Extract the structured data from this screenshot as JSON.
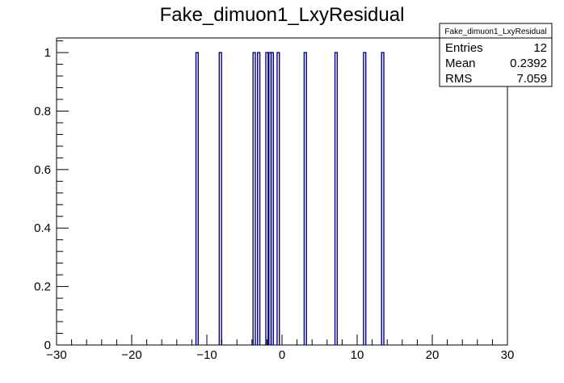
{
  "chart_data": {
    "type": "bar",
    "title": "Fake_dimuon1_LxyResidual",
    "xlabel": "",
    "ylabel": "",
    "xlim": [
      -30,
      30
    ],
    "ylim": [
      0,
      1.05
    ],
    "x_ticks": [
      -30,
      -20,
      -10,
      0,
      10,
      20,
      30
    ],
    "y_ticks": [
      0,
      0.2,
      0.4,
      0.6,
      0.8,
      1
    ],
    "grid": false,
    "bins": [
      {
        "x": -11.3,
        "value": 1
      },
      {
        "x": -8.2,
        "value": 1
      },
      {
        "x": -3.7,
        "value": 1
      },
      {
        "x": -3.1,
        "value": 1
      },
      {
        "x": -2.0,
        "value": 1
      },
      {
        "x": -1.6,
        "value": 1
      },
      {
        "x": -1.3,
        "value": 1
      },
      {
        "x": -0.5,
        "value": 1
      },
      {
        "x": 3.1,
        "value": 1
      },
      {
        "x": 7.2,
        "value": 1
      },
      {
        "x": 11.0,
        "value": 1
      },
      {
        "x": 13.4,
        "value": 1
      }
    ],
    "bin_width": 0.3,
    "line_color": "#000080",
    "stats": {
      "title": "Fake_dimuon1_LxyResidual",
      "rows": [
        {
          "label": "Entries",
          "value": "12"
        },
        {
          "label": "Mean",
          "value": "0.2392"
        },
        {
          "label": "RMS",
          "value": "7.059"
        }
      ]
    }
  }
}
